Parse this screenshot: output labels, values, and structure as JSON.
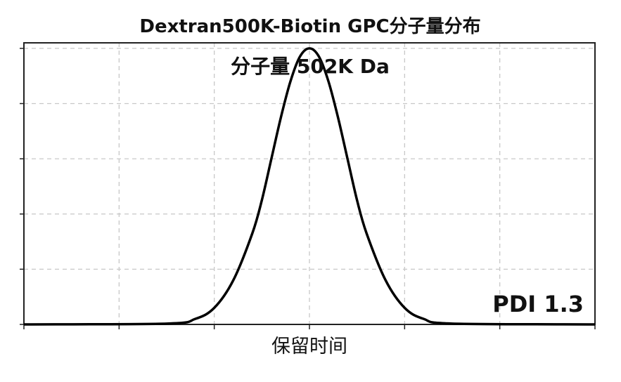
{
  "chart_data": {
    "type": "line",
    "title": "Dextran500K-Biotin GPC分子量分布",
    "xlabel": "保留时间",
    "ylabel": "",
    "annotations": {
      "peak_label": "分子量 502K Da",
      "pdi_label": "PDI 1.3"
    },
    "xlim": [
      0,
      6
    ],
    "ylim": [
      0,
      1.02
    ],
    "x_ticks": [
      0,
      1,
      2,
      3,
      4,
      5,
      6
    ],
    "y_ticks": [
      0,
      0.2,
      0.4,
      0.6,
      0.8,
      1.0
    ],
    "grid": true,
    "series": [
      {
        "peak_center": 3.0,
        "peak_height": 1.0,
        "x": [
          0.0,
          1.5,
          1.8,
          2.0,
          2.2,
          2.4,
          2.5,
          2.6,
          2.7,
          2.8,
          2.9,
          3.0,
          3.1,
          3.2,
          3.3,
          3.4,
          3.5,
          3.6,
          3.8,
          4.0,
          4.2,
          4.5,
          6.0
        ],
        "y": [
          0.0,
          0.003,
          0.02,
          0.06,
          0.16,
          0.33,
          0.45,
          0.6,
          0.75,
          0.88,
          0.97,
          1.0,
          0.97,
          0.88,
          0.75,
          0.6,
          0.45,
          0.33,
          0.16,
          0.06,
          0.02,
          0.003,
          0.0
        ],
        "color": "#000000"
      }
    ]
  }
}
